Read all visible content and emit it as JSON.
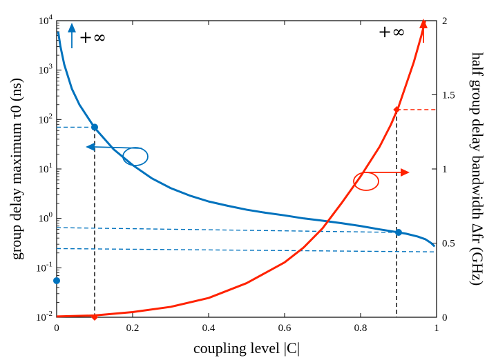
{
  "chart_data": {
    "type": "line",
    "xlabel": "coupling level |C|",
    "ylabel_left": "group delay maximum τ0 (ns)",
    "ylabel_right": "half group delay bandwidth Δfr (GHz)",
    "xlim": [
      0,
      1
    ],
    "ylim_left": [
      0.01,
      10000
    ],
    "ylim_right": [
      0,
      2
    ],
    "yscale_left": "log",
    "yscale_right": "linear",
    "grid": false,
    "x_ticks": [
      "0",
      "0.2",
      "0.4",
      "0.6",
      "0.8",
      "1"
    ],
    "y_left_ticks": [
      {
        "base": "10",
        "exp": "-2",
        "value": 0.01
      },
      {
        "base": "10",
        "exp": "-1",
        "value": 0.1
      },
      {
        "base": "10",
        "exp": "0",
        "value": 1
      },
      {
        "base": "10",
        "exp": "1",
        "value": 10
      },
      {
        "base": "10",
        "exp": "2",
        "value": 100
      },
      {
        "base": "10",
        "exp": "3",
        "value": 1000
      },
      {
        "base": "10",
        "exp": "4",
        "value": 10000
      }
    ],
    "y_right_ticks": [
      "0",
      "0.5",
      "1",
      "1.5",
      "2"
    ],
    "series": [
      {
        "axis": "left",
        "color": "#0072bd",
        "x": [
          0.004,
          0.01,
          0.02,
          0.04,
          0.06,
          0.1,
          0.15,
          0.2,
          0.25,
          0.3,
          0.35,
          0.4,
          0.45,
          0.5,
          0.55,
          0.6,
          0.65,
          0.7,
          0.75,
          0.8,
          0.85,
          0.9,
          0.92,
          0.95,
          0.97,
          0.985,
          0.995
        ],
        "y": [
          6000,
          3000,
          1300,
          420,
          200,
          68,
          25,
          12,
          6.5,
          4.1,
          2.9,
          2.2,
          1.8,
          1.5,
          1.3,
          1.15,
          1.0,
          0.9,
          0.8,
          0.7,
          0.6,
          0.52,
          0.49,
          0.43,
          0.38,
          0.32,
          0.27
        ]
      },
      {
        "axis": "right",
        "color": "#ff2200",
        "x": [
          0,
          0.1,
          0.2,
          0.3,
          0.4,
          0.5,
          0.6,
          0.65,
          0.7,
          0.75,
          0.8,
          0.85,
          0.88,
          0.9,
          0.92,
          0.94,
          0.96,
          0.97
        ],
        "y": [
          0.005,
          0.012,
          0.035,
          0.07,
          0.13,
          0.23,
          0.37,
          0.47,
          0.6,
          0.77,
          0.95,
          1.15,
          1.3,
          1.42,
          1.57,
          1.72,
          1.9,
          2.0
        ]
      }
    ],
    "markers": [
      {
        "axis": "left",
        "x": 0.1,
        "y": 70,
        "color": "#0072bd"
      },
      {
        "axis": "left",
        "x": 0.9,
        "y": 0.52,
        "color": "#0072bd"
      },
      {
        "axis": "left",
        "x": 0,
        "y": 0.055,
        "color": "#0072bd"
      },
      {
        "axis": "right",
        "x": 0.1,
        "y": 0.0,
        "color": "#ff2200"
      },
      {
        "axis": "right",
        "x": 0.895,
        "y": 1.4,
        "color": "#ff2200"
      }
    ],
    "annotations": {
      "plus_infinity_left": "+∞",
      "plus_infinity_right": "+∞"
    }
  }
}
